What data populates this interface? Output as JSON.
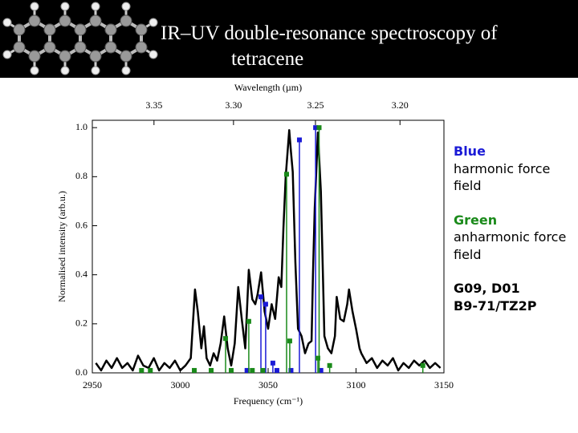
{
  "header": {
    "title": "IR–UV double-resonance spectroscopy of tetracene"
  },
  "chart_data": {
    "type": "line",
    "x_label": "Frequency (cm⁻¹)",
    "x2_label": "Wavelength (µm)",
    "y_label": "Normalised intensity (arb.u.)",
    "xlim": [
      2950,
      3150
    ],
    "xticks": [
      2950,
      3000,
      3050,
      3100,
      3150
    ],
    "x2ticks": [
      3.35,
      {
        "value": 3.3,
        "label": "3.30"
      },
      3.25,
      {
        "value": 3.2,
        "label": "3.20"
      }
    ],
    "ylim": [
      0,
      1.03
    ],
    "yticks": [
      {
        "value": 0,
        "label": "0.0"
      },
      0.2,
      0.4,
      0.6,
      0.8,
      {
        "value": 1,
        "label": "1.0"
      }
    ],
    "series": [
      {
        "style": "line",
        "color": "#000000",
        "x": [
          2952,
          2955,
          2958,
          2961,
          2964,
          2967,
          2970,
          2973,
          2976,
          2979,
          2982,
          2985,
          2988,
          2991,
          2994,
          2997,
          3000,
          3003,
          3006,
          3008.4,
          3010,
          3012,
          3013.5,
          3015,
          3017,
          3019,
          3021,
          3023,
          3025,
          3027,
          3029,
          3031,
          3033,
          3035,
          3037,
          3039,
          3041,
          3042.7,
          3044,
          3046,
          3048,
          3050,
          3052,
          3054,
          3056,
          3057.5,
          3058.7,
          3060,
          3062,
          3063,
          3064,
          3065.5,
          3067,
          3069,
          3071,
          3073,
          3074.7,
          3075.5,
          3076.5,
          3078.3,
          3080,
          3081,
          3082,
          3084,
          3086,
          3088,
          3089,
          3091,
          3093,
          3095,
          3096,
          3098,
          3100,
          3102,
          3103,
          3106,
          3109,
          3112,
          3115,
          3118,
          3121,
          3124,
          3127,
          3130,
          3133,
          3136,
          3139,
          3142,
          3145,
          3148
        ],
        "values": [
          0.04,
          0.01,
          0.05,
          0.02,
          0.06,
          0.02,
          0.04,
          0.01,
          0.07,
          0.03,
          0.02,
          0.06,
          0.01,
          0.04,
          0.02,
          0.05,
          0.01,
          0.03,
          0.06,
          0.34,
          0.25,
          0.1,
          0.19,
          0.06,
          0.03,
          0.08,
          0.05,
          0.12,
          0.23,
          0.1,
          0.03,
          0.12,
          0.35,
          0.22,
          0.1,
          0.42,
          0.3,
          0.28,
          0.32,
          0.41,
          0.25,
          0.18,
          0.28,
          0.22,
          0.39,
          0.35,
          0.59,
          0.8,
          0.99,
          0.9,
          0.82,
          0.45,
          0.18,
          0.15,
          0.08,
          0.12,
          0.13,
          0.4,
          0.67,
          0.98,
          0.74,
          0.45,
          0.15,
          0.1,
          0.08,
          0.15,
          0.31,
          0.22,
          0.21,
          0.28,
          0.34,
          0.25,
          0.18,
          0.1,
          0.08,
          0.04,
          0.06,
          0.02,
          0.05,
          0.03,
          0.06,
          0.01,
          0.04,
          0.02,
          0.05,
          0.03,
          0.05,
          0.02,
          0.04,
          0.02
        ]
      },
      {
        "style": "stem",
        "color": "#1a1ad6",
        "x": [
          3038,
          3045.9,
          3048.6,
          3052.7,
          3055,
          3063,
          3067.8,
          3077,
          3080
        ],
        "values": [
          0.01,
          0.31,
          0.28,
          0.04,
          0.01,
          0.01,
          0.95,
          1.0,
          0.01
        ]
      },
      {
        "style": "stem",
        "color": "#1a8a1a",
        "x": [
          2978,
          2983,
          3008,
          3017.6,
          3025.8,
          3029,
          3039,
          3041,
          3047,
          3060.5,
          3062.3,
          3078.3,
          3079,
          3085,
          3138
        ],
        "values": [
          0.01,
          0.01,
          0.01,
          0.01,
          0.14,
          0.01,
          0.21,
          0.01,
          0.01,
          0.81,
          0.13,
          0.06,
          1.0,
          0.03,
          0.03
        ]
      }
    ]
  },
  "notes": [
    {
      "heading": "Blue",
      "color": "#1a1ad6",
      "text": "harmonic force field"
    },
    {
      "heading": "Green",
      "color": "#1a8a1a",
      "text": "anharmonic force field"
    }
  ],
  "method": [
    "G09, D01",
    "B9-71/TZ2P"
  ]
}
